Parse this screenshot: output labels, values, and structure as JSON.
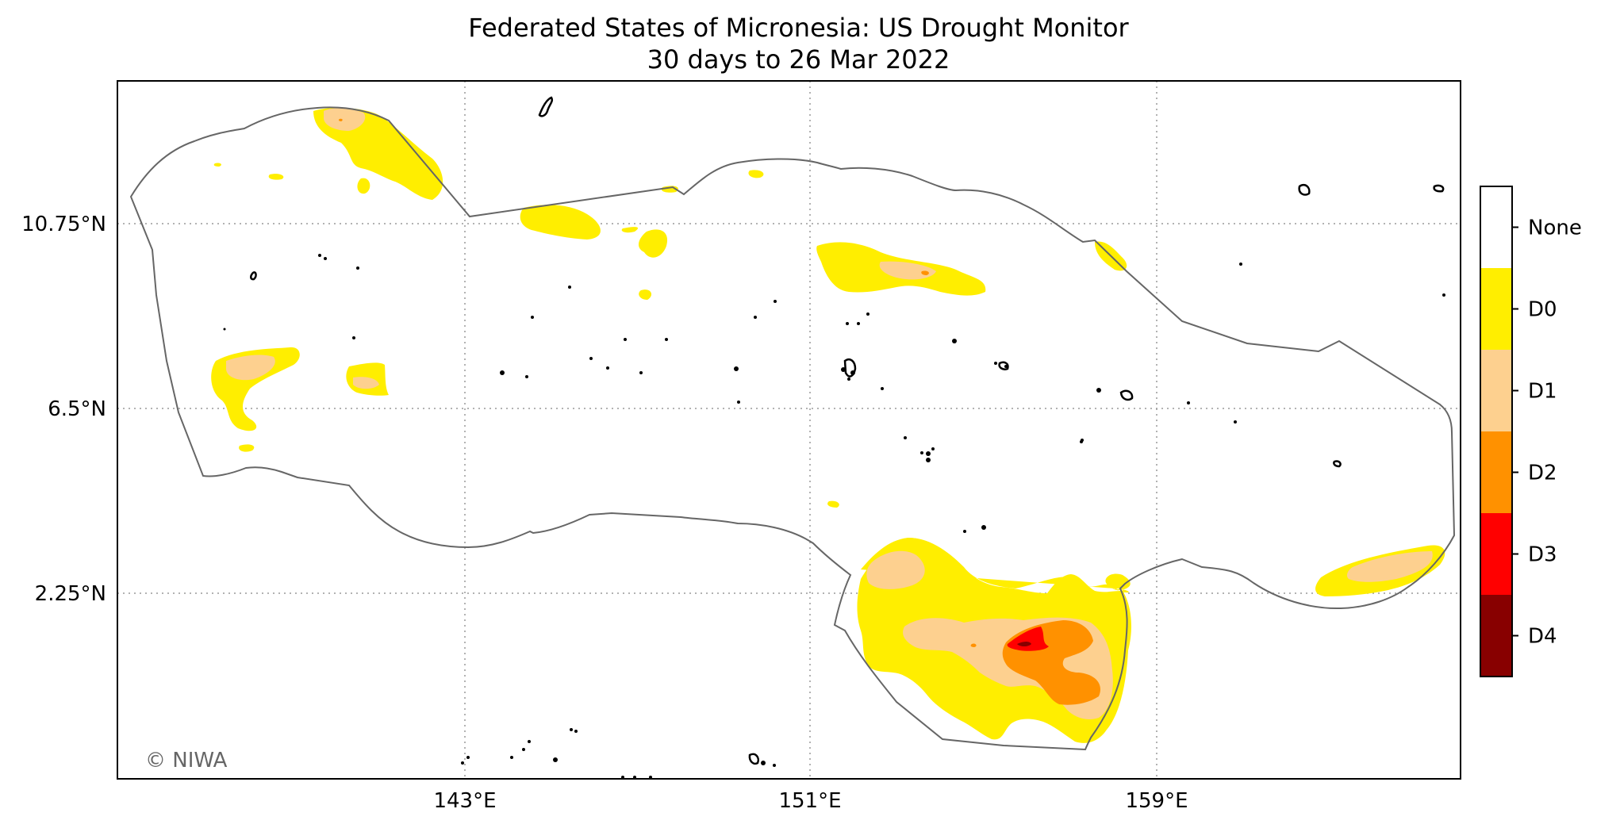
{
  "title": "Federated States of Micronesia: US Drought Monitor",
  "subtitle": "30 days to 26 Mar 2022",
  "lat_labels": [
    "10.75°N",
    "6.5°N",
    "2.25°N"
  ],
  "lon_labels": [
    "143°E",
    "151°E",
    "159°E"
  ],
  "legend": {
    "categories": [
      {
        "label": "None",
        "color": "#ffffff"
      },
      {
        "label": "D0",
        "color": "#ffee00"
      },
      {
        "label": "D1",
        "color": "#fdd08f"
      },
      {
        "label": "D2",
        "color": "#ff9100"
      },
      {
        "label": "D3",
        "color": "#ff0000"
      },
      {
        "label": "D4",
        "color": "#880000"
      }
    ]
  },
  "credit": "© NIWA"
}
